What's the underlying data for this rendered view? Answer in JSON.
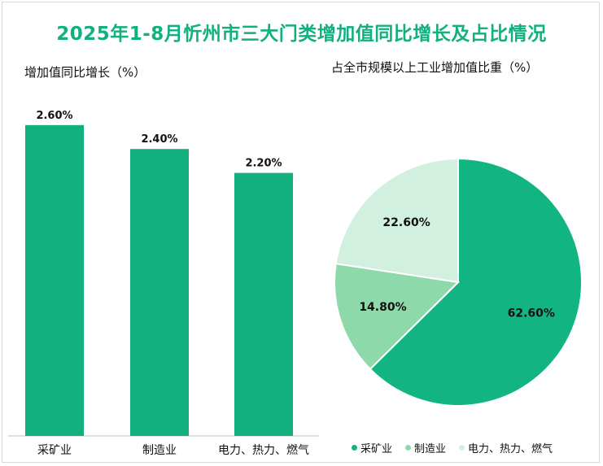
{
  "title": "2025年1-8月忻州市三大门类增加值同比增长及占比情况",
  "left_subtitle": "增加值同比增长（%）",
  "right_subtitle": "占全市规模以上工业增加值比重（%）",
  "colors": {
    "title": "#12b07e",
    "bar": "#12b07e",
    "pie": [
      "#12b581",
      "#8ed9a9",
      "#d2f0df"
    ]
  },
  "chart_data": [
    {
      "type": "bar",
      "title": "增加值同比增长（%）",
      "categories": [
        "采矿业",
        "制造业",
        "电力、热力、燃气"
      ],
      "values": [
        2.6,
        2.4,
        2.2
      ],
      "value_labels": [
        "2.60%",
        "2.40%",
        "2.20%"
      ],
      "ylim": [
        0,
        3.0
      ],
      "grid": false
    },
    {
      "type": "pie",
      "title": "占全市规模以上工业增加值比重（%）",
      "labels": [
        "采矿业",
        "制造业",
        "电力、热力、燃气"
      ],
      "values": [
        62.6,
        14.8,
        22.6
      ],
      "value_labels": [
        "62.60%",
        "14.80%",
        "22.60%"
      ],
      "legend": "bottom"
    }
  ]
}
